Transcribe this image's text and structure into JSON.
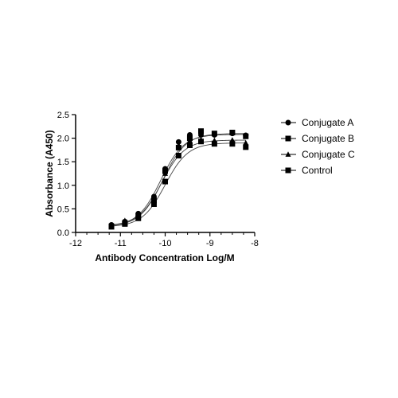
{
  "chart_data": {
    "type": "scatter",
    "title": "",
    "xlabel": "Antibody Concentration Log/M",
    "ylabel": "Absorbance (A450)",
    "xlim": [
      -12,
      -8
    ],
    "ylim": [
      0,
      2.5
    ],
    "x_ticks": [
      -12,
      -11,
      -10,
      -9,
      -8
    ],
    "x_tick_labels": [
      "-12",
      "-11",
      "-10",
      "-9",
      "-8"
    ],
    "y_ticks": [
      0,
      0.5,
      1.0,
      1.5,
      2.0,
      2.5
    ],
    "y_tick_labels": [
      "0.0",
      "0.5",
      "1.0",
      "1.5",
      "2.0",
      "2.5"
    ],
    "grid": false,
    "legend_position": "right",
    "x": [
      -11.2,
      -10.9,
      -10.6,
      -10.25,
      -10.0,
      -9.7,
      -9.45,
      -9.2,
      -8.9,
      -8.5,
      -8.2
    ],
    "series": [
      {
        "name": "Conjugate A",
        "marker": "circle",
        "color": "#000000",
        "values": [
          0.16,
          0.23,
          0.4,
          0.76,
          1.35,
          1.92,
          2.07,
          2.07,
          2.07,
          2.1,
          2.06
        ],
        "fit": {
          "bottom": 0.13,
          "top": 2.08,
          "logEC50": -10.1,
          "hill": 1.7
        }
      },
      {
        "name": "Conjugate B",
        "marker": "square",
        "color": "#000000",
        "values": [
          0.13,
          0.2,
          0.35,
          0.68,
          1.3,
          1.8,
          2.0,
          2.15,
          2.1,
          2.12,
          2.04
        ],
        "fit": {
          "bottom": 0.13,
          "top": 2.1,
          "logEC50": -10.05,
          "hill": 1.7
        }
      },
      {
        "name": "Conjugate C",
        "marker": "triangle",
        "color": "#000000",
        "values": [
          0.15,
          0.25,
          0.38,
          0.72,
          1.25,
          1.85,
          1.95,
          1.97,
          1.95,
          1.96,
          1.9
        ],
        "fit": {
          "bottom": 0.14,
          "top": 1.96,
          "logEC50": -10.08,
          "hill": 1.7
        }
      },
      {
        "name": "Control",
        "marker": "square",
        "color": "#000000",
        "values": [
          0.12,
          0.18,
          0.3,
          0.6,
          1.08,
          1.63,
          1.85,
          1.93,
          1.88,
          1.88,
          1.81
        ],
        "fit": {
          "bottom": 0.12,
          "top": 1.9,
          "logEC50": -10.0,
          "hill": 1.7
        }
      }
    ]
  }
}
